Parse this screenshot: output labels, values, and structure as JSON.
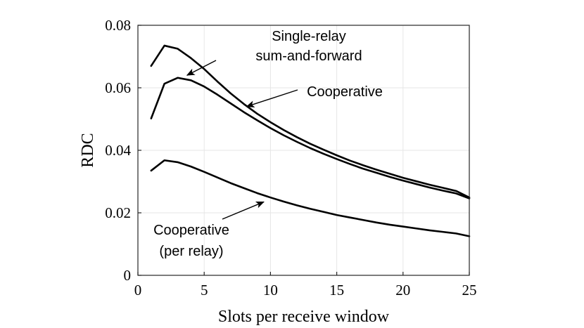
{
  "chart_data": {
    "type": "line",
    "title": "",
    "xlabel": "Slots per receive window",
    "ylabel": "RDC",
    "xlim": [
      0,
      25
    ],
    "ylim": [
      0,
      0.08
    ],
    "grid": true,
    "xticks": [
      0,
      5,
      10,
      15,
      20,
      25
    ],
    "xtick_labels": [
      "0",
      "5",
      "10",
      "15",
      "20",
      "25"
    ],
    "yticks": [
      0,
      0.02,
      0.04,
      0.06,
      0.08
    ],
    "ytick_labels": [
      "0",
      "0.02",
      "0.04",
      "0.06",
      "0.08"
    ],
    "series": [
      {
        "name": "Single-relay sum-and-forward",
        "x": [
          1,
          2,
          3,
          4,
          5,
          6,
          7,
          8,
          9,
          10,
          11,
          12,
          13,
          14,
          15,
          16,
          17,
          18,
          19,
          20,
          21,
          22,
          23,
          24,
          25
        ],
        "y": [
          0.067,
          0.0735,
          0.0725,
          0.0695,
          0.066,
          0.062,
          0.0582,
          0.0548,
          0.0517,
          0.049,
          0.0465,
          0.0442,
          0.0421,
          0.0402,
          0.0384,
          0.0367,
          0.0352,
          0.0338,
          0.0325,
          0.0312,
          0.0301,
          0.029,
          0.028,
          0.027,
          0.0249
        ]
      },
      {
        "name": "Cooperative",
        "x": [
          1,
          2,
          3,
          4,
          5,
          6,
          7,
          8,
          9,
          10,
          11,
          12,
          13,
          14,
          15,
          16,
          17,
          18,
          19,
          20,
          21,
          22,
          23,
          24,
          25
        ],
        "y": [
          0.0502,
          0.0613,
          0.0632,
          0.0624,
          0.0604,
          0.0578,
          0.055,
          0.0522,
          0.0496,
          0.0471,
          0.0448,
          0.0427,
          0.0407,
          0.0389,
          0.0372,
          0.0356,
          0.0341,
          0.0328,
          0.0315,
          0.0303,
          0.0292,
          0.0281,
          0.0271,
          0.0262,
          0.0246
        ]
      },
      {
        "name": "Cooperative (per relay)",
        "x": [
          1,
          2,
          3,
          4,
          5,
          6,
          7,
          8,
          9,
          10,
          11,
          12,
          13,
          14,
          15,
          16,
          17,
          18,
          19,
          20,
          21,
          22,
          23,
          24,
          25
        ],
        "y": [
          0.0335,
          0.0368,
          0.0362,
          0.0348,
          0.0331,
          0.0313,
          0.0295,
          0.0279,
          0.0263,
          0.0249,
          0.0236,
          0.0224,
          0.0213,
          0.0203,
          0.0193,
          0.0185,
          0.0177,
          0.0169,
          0.0162,
          0.0156,
          0.015,
          0.0144,
          0.0139,
          0.0134,
          0.0125
        ]
      }
    ],
    "annotations": [
      {
        "lines": [
          "Single-relay",
          "sum-and-forward"
        ],
        "points_to": {
          "x": 3.7,
          "y": 0.064
        }
      },
      {
        "lines": [
          "Cooperative"
        ],
        "points_to": {
          "x": 8.2,
          "y": 0.054
        }
      },
      {
        "lines": [
          "Cooperative",
          "(per relay)"
        ],
        "points_to": {
          "x": 9.5,
          "y": 0.0235
        }
      }
    ]
  }
}
